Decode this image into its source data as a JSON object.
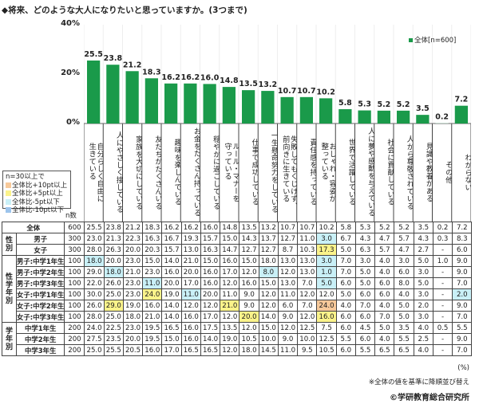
{
  "title": "◆将来、どのような大人になりたいと思っていますか。(3つまで)",
  "legend": {
    "header": "n=30以上で",
    "items": [
      {
        "label": "全体比+10pt以上",
        "color": "#f7c99a"
      },
      {
        "label": "全体比+5pt以上",
        "color": "#fbf38a"
      },
      {
        "label": "全体比-5pt以下",
        "color": "#c9f0f7"
      },
      {
        "label": "全体比-10pt以下",
        "color": "#9cc4ec"
      }
    ]
  },
  "n_header": "n数",
  "footer": {
    "unit": "(%)",
    "note": "※全体の値を基準に降順並び替え",
    "copyright": "©学研教育総合研究所"
  },
  "chart_data": {
    "type": "bar",
    "ylim": [
      0,
      40
    ],
    "yticks": [
      "0%",
      "20%",
      "40%"
    ],
    "grid": true,
    "legend_position": "top-right",
    "colors": {
      "bar": "#1a9a4a",
      "bar_other": "#a9c9b8"
    },
    "series": [
      {
        "name": "全体[n=600]",
        "values": [
          25.5,
          23.8,
          21.2,
          18.3,
          16.2,
          16.2,
          16.0,
          14.8,
          13.5,
          13.2,
          10.7,
          10.7,
          10.2,
          5.8,
          5.3,
          5.2,
          5.2,
          3.5,
          0.2,
          7.2
        ]
      }
    ],
    "categories": [
      "自分らしく自由に\n生きている",
      "人にやさしく接している",
      "家族を大切にしている",
      "友だちがたくさんいる",
      "趣味を楽しんでいる",
      "お金をたくさん持っている",
      "穏やかに過ごしている",
      "ルール・マナーを\n守っている",
      "仕事で成功している",
      "一生懸命努力をしている",
      "失敗してもくじけず、\n前向きに生きている",
      "責任感を持っている",
      "おしゃれ・容姿が\n整っている",
      "世界で活躍している",
      "人に夢や感動を与えている",
      "社会に貢献している",
      "人から尊敬されている",
      "見識や教養がある",
      "その他",
      "わからない"
    ]
  },
  "table": {
    "groups": [
      {
        "label": "",
        "rows": [
          {
            "label": "全体",
            "n": "600",
            "values": [
              "25.5",
              "23.8",
              "21.2",
              "18.3",
              "16.2",
              "16.2",
              "16.0",
              "14.8",
              "13.5",
              "13.2",
              "10.7",
              "10.7",
              "10.2",
              "5.8",
              "5.3",
              "5.2",
              "5.2",
              "3.5",
              "0.2",
              "7.2"
            ],
            "hl": ""
          }
        ]
      },
      {
        "label": "性\n別",
        "rows": [
          {
            "label": "男子",
            "n": "300",
            "values": [
              "23.0",
              "21.3",
              "22.3",
              "16.3",
              "16.7",
              "19.3",
              "15.7",
              "15.0",
              "14.3",
              "13.7",
              "12.7",
              "11.0",
              "3.0",
              "6.7",
              "4.3",
              "4.7",
              "5.7",
              "4.3",
              "0.3",
              "8.3"
            ],
            "hl": "............c......."
          },
          {
            "label": "女子",
            "n": "300",
            "values": [
              "28.0",
              "26.3",
              "20.0",
              "20.3",
              "15.7",
              "13.0",
              "16.3",
              "14.7",
              "12.7",
              "12.7",
              "8.7",
              "10.3",
              "17.3",
              "5.0",
              "6.3",
              "5.7",
              "4.7",
              "2.7",
              "-",
              "6.0"
            ],
            "hl": "............y......."
          }
        ]
      },
      {
        "label": "性\n学\n年\n別",
        "rows": [
          {
            "label": "男子:中学1年生",
            "n": "100",
            "values": [
              "18.0",
              "20.0",
              "23.0",
              "15.0",
              "14.0",
              "21.0",
              "15.0",
              "16.0",
              "15.0",
              "18.0",
              "13.0",
              "13.0",
              "3.0",
              "7.0",
              "3.0",
              "4.0",
              "3.0",
              "5.0",
              "1.0",
              "9.0"
            ],
            "hl": "c...........c......."
          },
          {
            "label": "男子:中学2年生",
            "n": "100",
            "values": [
              "29.0",
              "18.0",
              "21.0",
              "23.0",
              "16.0",
              "20.0",
              "16.0",
              "17.0",
              "12.0",
              "8.0",
              "12.0",
              "13.0",
              "1.0",
              "7.0",
              "5.0",
              "4.0",
              "6.0",
              "3.0",
              "-",
              "9.0"
            ],
            "hl": ".c.......c..c......."
          },
          {
            "label": "男子:中学3年生",
            "n": "100",
            "values": [
              "22.0",
              "26.0",
              "23.0",
              "11.0",
              "20.0",
              "17.0",
              "16.0",
              "12.0",
              "16.0",
              "15.0",
              "13.0",
              "7.0",
              "5.0",
              "6.0",
              "5.0",
              "6.0",
              "8.0",
              "5.0",
              "-",
              "7.0"
            ],
            "hl": "...c........c......."
          },
          {
            "label": "女子:中学1年生",
            "n": "100",
            "values": [
              "30.0",
              "25.0",
              "23.0",
              "24.0",
              "19.0",
              "11.0",
              "20.0",
              "11.0",
              "9.0",
              "12.0",
              "11.0",
              "12.0",
              "12.0",
              "5.0",
              "6.0",
              "6.0",
              "4.0",
              "3.0",
              "-",
              "2.0"
            ],
            "hl": "...y.c.............c"
          },
          {
            "label": "女子:中学2年生",
            "n": "100",
            "values": [
              "26.0",
              "29.0",
              "19.0",
              "16.0",
              "14.0",
              "12.0",
              "12.0",
              "21.0",
              "9.0",
              "12.0",
              "6.0",
              "7.0",
              "24.0",
              "4.0",
              "7.0",
              "4.0",
              "5.0",
              "2.0",
              "-",
              "9.0"
            ],
            "hl": ".y.....y....o......."
          },
          {
            "label": "女子:中学3年生",
            "n": "100",
            "values": [
              "28.0",
              "25.0",
              "18.0",
              "21.0",
              "14.0",
              "16.0",
              "17.0",
              "12.0",
              "20.0",
              "14.0",
              "9.0",
              "12.0",
              "16.0",
              "6.0",
              "6.0",
              "7.0",
              "5.0",
              "3.0",
              "-",
              "7.0"
            ],
            "hl": "........y...y......."
          }
        ]
      },
      {
        "label": "学\n年\n別",
        "rows": [
          {
            "label": "中学1年生",
            "n": "200",
            "values": [
              "24.0",
              "22.5",
              "23.0",
              "19.5",
              "16.5",
              "16.0",
              "17.5",
              "13.5",
              "12.0",
              "15.0",
              "12.0",
              "12.5",
              "7.5",
              "6.0",
              "4.5",
              "5.0",
              "3.5",
              "4.0",
              "0.5",
              "5.5"
            ],
            "hl": ""
          },
          {
            "label": "中学2年生",
            "n": "200",
            "values": [
              "27.5",
              "23.5",
              "20.0",
              "19.5",
              "15.0",
              "16.0",
              "14.0",
              "19.0",
              "10.5",
              "10.0",
              "9.0",
              "10.0",
              "12.5",
              "5.5",
              "6.0",
              "4.0",
              "5.5",
              "2.5",
              "-",
              "9.0"
            ],
            "hl": ""
          },
          {
            "label": "中学3年生",
            "n": "200",
            "values": [
              "25.0",
              "25.5",
              "20.5",
              "16.0",
              "17.0",
              "16.5",
              "16.5",
              "12.0",
              "18.0",
              "14.5",
              "11.0",
              "9.5",
              "10.5",
              "6.0",
              "5.5",
              "6.5",
              "6.5",
              "4.0",
              "-",
              "7.0"
            ],
            "hl": ""
          }
        ]
      }
    ]
  }
}
